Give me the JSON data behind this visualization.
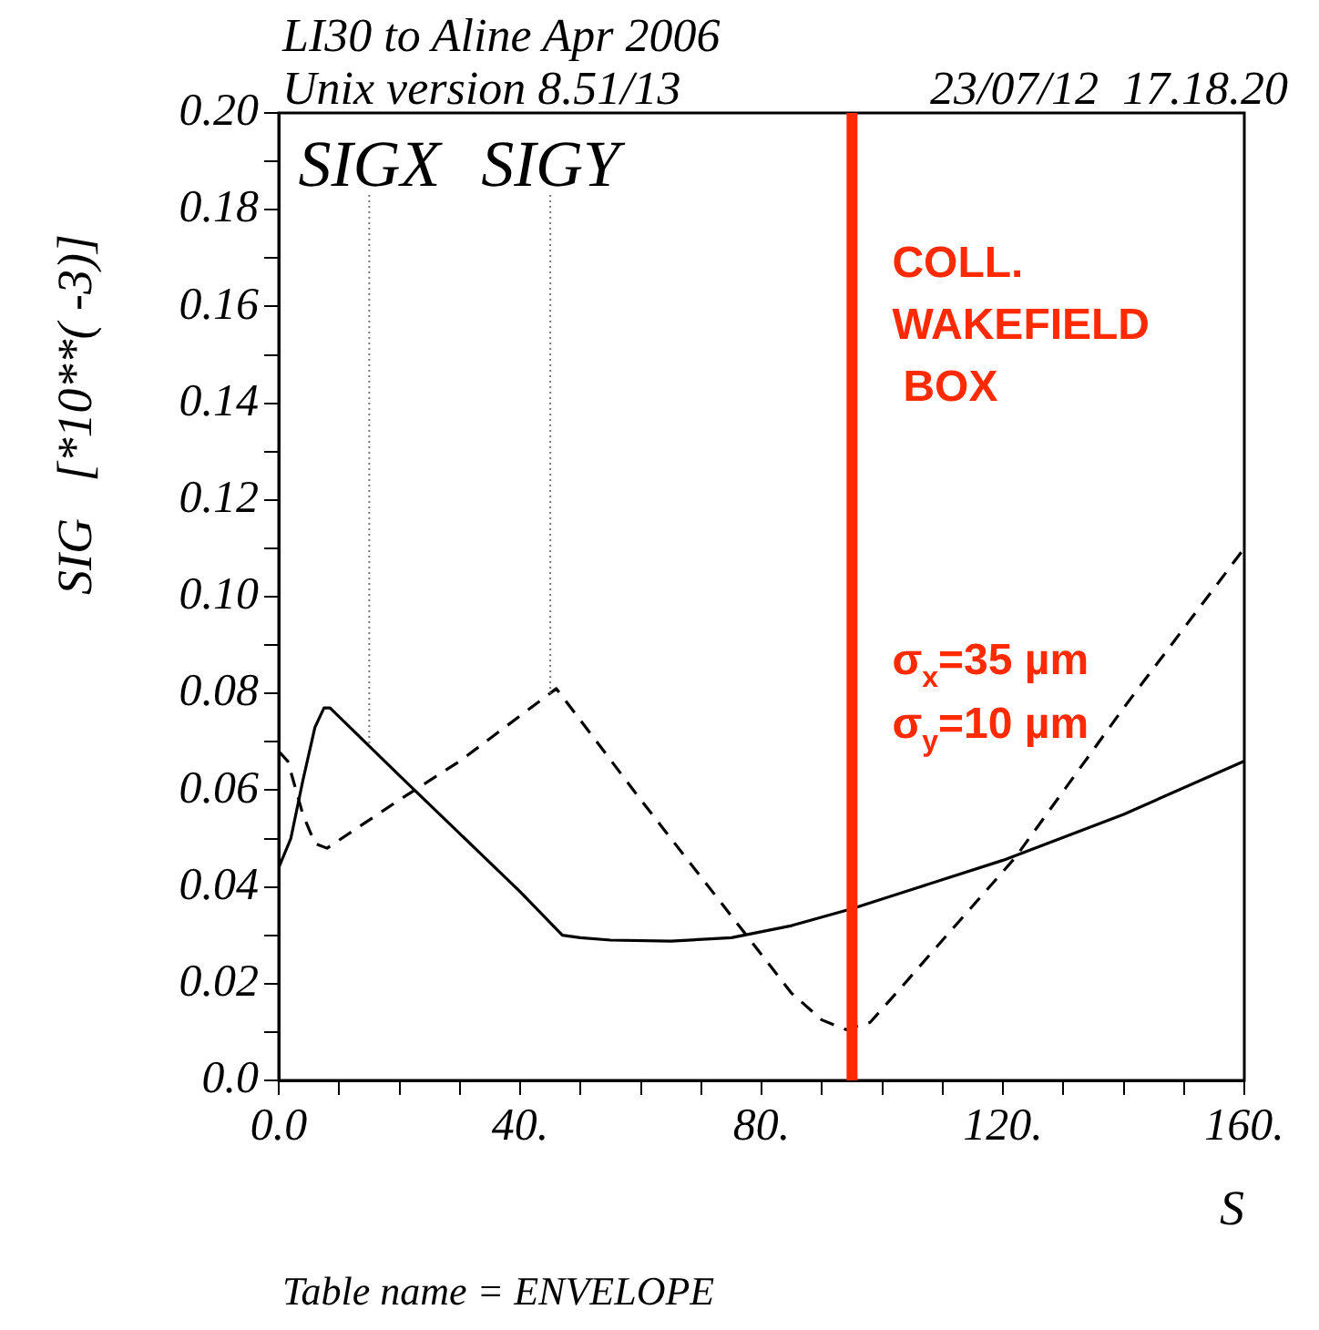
{
  "chart_data": {
    "type": "line",
    "title": "LI30 to Aline Apr 2006",
    "subtitle": "Unix version 8.51/13",
    "xlabel": "S",
    "ylabel": "SIG   [*10**( -3)]",
    "xlim": [
      0,
      160
    ],
    "xticks": [
      {
        "value": 0,
        "label": "0.0"
      },
      {
        "value": 10,
        "label": null
      },
      {
        "value": 20,
        "label": null
      },
      {
        "value": 30,
        "label": null
      },
      {
        "value": 40,
        "label": "40."
      },
      {
        "value": 50,
        "label": null
      },
      {
        "value": 60,
        "label": null
      },
      {
        "value": 70,
        "label": null
      },
      {
        "value": 80,
        "label": "80."
      },
      {
        "value": 90,
        "label": null
      },
      {
        "value": 100,
        "label": null
      },
      {
        "value": 110,
        "label": null
      },
      {
        "value": 120,
        "label": "120."
      },
      {
        "value": 130,
        "label": null
      },
      {
        "value": 140,
        "label": null
      },
      {
        "value": 150,
        "label": null
      },
      {
        "value": 160,
        "label": "160."
      }
    ],
    "ylim": [
      0,
      0.2
    ],
    "yticks": [
      {
        "value": 0,
        "label": "0.0"
      },
      {
        "value": 0.01,
        "label": null
      },
      0.02,
      {
        "value": 0.03,
        "label": null
      },
      0.04,
      {
        "value": 0.05,
        "label": null
      },
      0.06,
      {
        "value": 0.07,
        "label": null
      },
      0.08,
      {
        "value": 0.09,
        "label": null
      },
      {
        "value": 0.1,
        "label": "0.10"
      },
      {
        "value": 0.11,
        "label": null
      },
      0.12,
      {
        "value": 0.13,
        "label": null
      },
      0.14,
      {
        "value": 0.15,
        "label": null
      },
      0.16,
      {
        "value": 0.17,
        "label": null
      },
      0.18,
      {
        "value": 0.19,
        "label": null
      },
      {
        "value": 0.2,
        "label": "0.20"
      }
    ],
    "series": [
      {
        "color": "#000000",
        "line_style": "solid",
        "x": [
          0,
          2,
          4,
          6,
          7.5,
          8.5,
          20,
          30,
          40,
          47,
          50,
          55,
          65,
          75,
          85,
          95,
          105,
          120,
          140,
          160
        ],
        "values": [
          0.044,
          0.05,
          0.062,
          0.073,
          0.077,
          0.077,
          0.063,
          0.051,
          0.039,
          0.03,
          0.0295,
          0.029,
          0.0288,
          0.0295,
          0.032,
          0.0355,
          0.0395,
          0.0455,
          0.055,
          0.066
        ]
      },
      {
        "color": "#000000",
        "line_style": "dashed",
        "x": [
          0,
          1.5,
          4,
          6,
          8,
          20,
          30,
          46,
          60,
          70,
          80,
          85,
          90,
          94,
          98,
          103,
          110,
          122,
          140,
          160
        ],
        "values": [
          0.068,
          0.066,
          0.055,
          0.049,
          0.048,
          0.058,
          0.066,
          0.081,
          0.058,
          0.042,
          0.026,
          0.018,
          0.0125,
          0.0105,
          0.012,
          0.019,
          0.029,
          0.046,
          0.077,
          0.11
        ]
      }
    ],
    "ref_lines": [
      {
        "axis": "x",
        "value": 95,
        "label": "COLL. WAKEFIELD BOX",
        "color": "#ff2a00"
      }
    ],
    "annotations": [
      "23/07/12  17.18.20",
      "σ$_{x}$=35 µm",
      "σ$_{y}$=10 µm",
      "Table name = ENVELOPE",
      {
        "text": "SIGX",
        "x": 15,
        "y": 0.069
      },
      {
        "text": "SIGY",
        "x": 45,
        "y": 0.08
      }
    ],
    "grid": false,
    "legend": false,
    "marker": "none"
  }
}
